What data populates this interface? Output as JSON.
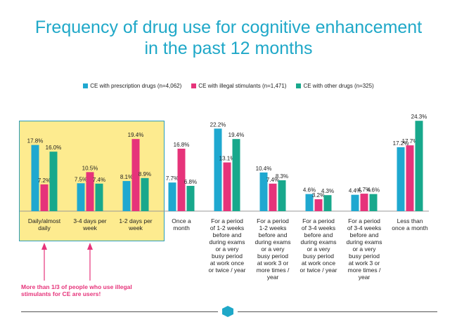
{
  "title_line1": "Frequency of drug use for cognitive enhancement",
  "title_line2": "in the past 12 months",
  "callout_text": "More than 1/3 of people who use illegal stimulants for CE are users!",
  "colors": {
    "title": "#1fa8c8",
    "highlight": "#fdeb8f",
    "highlight_border": "#2a9dba",
    "callout": "#e6337a"
  },
  "chart_data": {
    "type": "bar",
    "title": "Frequency of drug use for cognitive enhancement in the past 12 months",
    "xlabel": "",
    "ylabel": "",
    "ylim": [
      0,
      25
    ],
    "grid": false,
    "legend_position": "top",
    "categories": [
      "Daily/almost daily",
      "3-4 days per week",
      "1-2 days per week",
      "Once a month",
      "For a period of 1-2 weeks before and during exams or a very busy period at work once or twice / year",
      "For a period of 1-2 weeks before and during exams or a very busy period at work 3 or more times / year",
      "For a period of 3-4 weeks before and during exams or a very busy period at work once or twice / year",
      "For a period of 3-4 weeks before and during exams or a very busy period at work 3 or more times / year",
      "Less than once a month"
    ],
    "category_lines": [
      [
        "Daily/almost",
        "daily"
      ],
      [
        "3-4 days per",
        "week"
      ],
      [
        "1-2 days per",
        "week"
      ],
      [
        "Once a",
        "month"
      ],
      [
        "For a period",
        "of 1-2 weeks",
        "before and",
        "during exams",
        "or a very",
        "busy period",
        "at work once",
        "or twice / year"
      ],
      [
        "For a period",
        "1-2 weeks",
        "before and",
        "during exams",
        "or a very",
        "busy period",
        "at work 3 or",
        "more times /",
        "year"
      ],
      [
        "For a period",
        "of 3-4 weeks",
        "before and",
        "during exams",
        "or a very",
        "busy period",
        "at work once",
        "or twice / year"
      ],
      [
        "For a period",
        "of 3-4 weeks",
        "before and",
        "during exams",
        "or a very",
        "busy period",
        "at work 3 or",
        "more times /",
        "year"
      ],
      [
        "Less than",
        "once a month"
      ]
    ],
    "series": [
      {
        "name": "CE with prescription drugs (n=4,062)",
        "color": "#1fa8d0",
        "values": [
          17.8,
          7.5,
          8.1,
          7.7,
          22.2,
          10.4,
          4.6,
          4.4,
          17.2
        ],
        "labels": [
          "17.8%",
          "7.5%",
          "8.1%",
          "7.7%",
          "22.2%",
          "10.4%",
          "4.6%",
          "4.4%",
          "17.2%"
        ]
      },
      {
        "name": "CE with illegal stimulants (n=1,471)",
        "color": "#e6337a",
        "values": [
          7.2,
          10.5,
          19.4,
          16.8,
          13.1,
          7.4,
          3.2,
          4.7,
          17.7
        ],
        "labels": [
          "7.2%",
          "10.5%",
          "19.4%",
          "16.8%",
          "13.1%",
          "7.4%",
          "3.2%",
          "4.7%",
          "17.7%"
        ]
      },
      {
        "name": "CE with other drugs (n=325)",
        "color": "#18a88c",
        "values": [
          16.0,
          7.4,
          8.9,
          6.8,
          19.4,
          8.3,
          4.3,
          4.6,
          24.3
        ],
        "labels": [
          "16.0%",
          "7.4%",
          "8.9%",
          "6.8%",
          "19.4%",
          "8.3%",
          "4.3%",
          "4.6%",
          "24.3%"
        ]
      }
    ]
  }
}
